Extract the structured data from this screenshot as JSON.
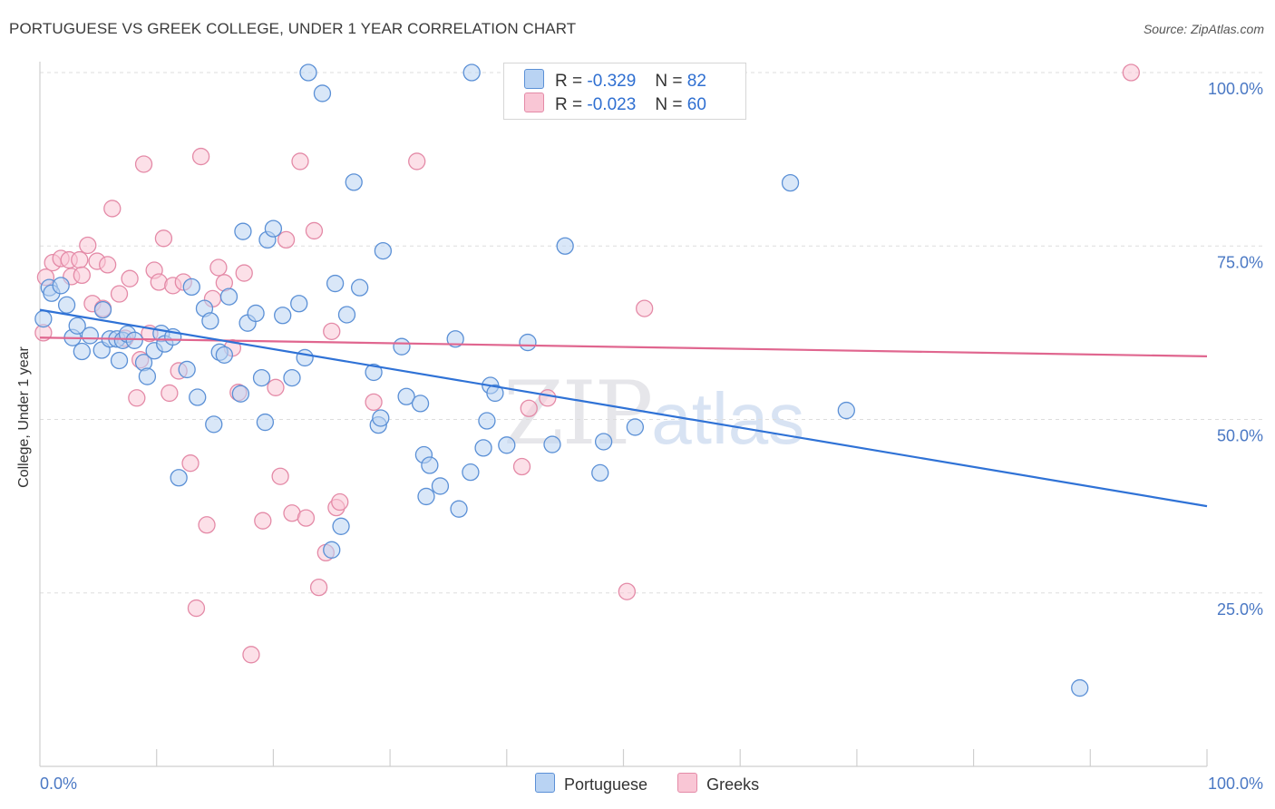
{
  "header": {
    "title": "PORTUGUESE VS GREEK COLLEGE, UNDER 1 YEAR CORRELATION CHART",
    "source": "Source: ZipAtlas.com"
  },
  "watermark": {
    "zip": "ZIP",
    "atlas": "atlas"
  },
  "legend": {
    "rows": [
      {
        "r_label": "R =",
        "r_value": "-0.329",
        "n_label": "N =",
        "n_value": "82"
      },
      {
        "r_label": "R =",
        "r_value": "-0.023",
        "n_label": "N =",
        "n_value": "60"
      }
    ]
  },
  "bottom_legend": {
    "items": [
      "Portuguese",
      "Greeks"
    ]
  },
  "colors": {
    "portuguese_fill": "#b9d3f3",
    "portuguese_stroke": "#5b90d6",
    "portuguese_line": "#2f72d6",
    "greeks_fill": "#f9c6d5",
    "greeks_stroke": "#e48aa7",
    "greeks_line": "#e0668f",
    "tick_label": "#4a78c4",
    "grid": "#dddddd"
  },
  "chart_data": {
    "type": "scatter",
    "title": "PORTUGUESE VS GREEK COLLEGE, UNDER 1 YEAR CORRELATION CHART",
    "xlabel": "",
    "ylabel": "College, Under 1 year",
    "xlim": [
      0,
      100
    ],
    "ylim": [
      0,
      105
    ],
    "x_tick_labels": [
      "0.0%",
      "100.0%"
    ],
    "y_ticks": [
      25,
      50,
      75,
      100
    ],
    "y_tick_labels": [
      "25.0%",
      "50.0%",
      "75.0%",
      "100.0%"
    ],
    "grid": "horizontal dashed",
    "legend_position": "top-center",
    "series": [
      {
        "name": "Portuguese",
        "r": -0.329,
        "n": 82,
        "trend": {
          "x": [
            0,
            100
          ],
          "y": [
            65.8,
            37.5
          ]
        },
        "points": [
          [
            0.8,
            69
          ],
          [
            1,
            68.2
          ],
          [
            1.8,
            69.3
          ],
          [
            2.3,
            66.5
          ],
          [
            2.8,
            61.8
          ],
          [
            3.2,
            63.5
          ],
          [
            3.6,
            59.8
          ],
          [
            4.3,
            62.1
          ],
          [
            5.3,
            60
          ],
          [
            5.4,
            65.8
          ],
          [
            6,
            61.6
          ],
          [
            6.6,
            61.6
          ],
          [
            6.8,
            58.5
          ],
          [
            7.1,
            61.4
          ],
          [
            7.5,
            62.3
          ],
          [
            8.1,
            61.4
          ],
          [
            8.9,
            58.2
          ],
          [
            9.2,
            56.2
          ],
          [
            9.8,
            59.9
          ],
          [
            10.4,
            62.4
          ],
          [
            10.7,
            60.9
          ],
          [
            11.4,
            61.9
          ],
          [
            11.9,
            41.6
          ],
          [
            12.6,
            57.2
          ],
          [
            13,
            69.1
          ],
          [
            13.5,
            53.2
          ],
          [
            14.1,
            66
          ],
          [
            14.6,
            64.2
          ],
          [
            14.9,
            49.3
          ],
          [
            15.4,
            59.7
          ],
          [
            15.8,
            59.3
          ],
          [
            16.2,
            67.7
          ],
          [
            17.2,
            53.7
          ],
          [
            17.4,
            77.1
          ],
          [
            17.8,
            63.9
          ],
          [
            18.5,
            65.3
          ],
          [
            19,
            56
          ],
          [
            19.3,
            49.6
          ],
          [
            19.5,
            75.9
          ],
          [
            20,
            77.5
          ],
          [
            20.8,
            65
          ],
          [
            21.6,
            56
          ],
          [
            22.2,
            66.7
          ],
          [
            22.7,
            58.9
          ],
          [
            23,
            100
          ],
          [
            24.2,
            97
          ],
          [
            25,
            31.2
          ],
          [
            25.3,
            69.6
          ],
          [
            25.8,
            34.6
          ],
          [
            26.3,
            65.1
          ],
          [
            26.9,
            84.2
          ],
          [
            27.4,
            69
          ],
          [
            29.4,
            74.3
          ],
          [
            28.6,
            56.8
          ],
          [
            29,
            49.2
          ],
          [
            29.2,
            50.2
          ],
          [
            31,
            60.5
          ],
          [
            31.4,
            53.3
          ],
          [
            32.6,
            52.3
          ],
          [
            32.9,
            44.9
          ],
          [
            33.4,
            43.4
          ],
          [
            33.1,
            38.9
          ],
          [
            34.3,
            40.4
          ],
          [
            35.6,
            61.6
          ],
          [
            35.9,
            37.1
          ],
          [
            36.9,
            42.4
          ],
          [
            37,
            100
          ],
          [
            38,
            45.9
          ],
          [
            38.3,
            49.8
          ],
          [
            38.6,
            54.9
          ],
          [
            39,
            53.8
          ],
          [
            40,
            46.3
          ],
          [
            41.8,
            61.1
          ],
          [
            43.9,
            46.4
          ],
          [
            45,
            75
          ],
          [
            48,
            42.3
          ],
          [
            48.3,
            46.8
          ],
          [
            51,
            48.9
          ],
          [
            64.3,
            84.1
          ],
          [
            69.1,
            51.3
          ],
          [
            89.1,
            11.3
          ],
          [
            0.3,
            64.5
          ]
        ]
      },
      {
        "name": "Greeks",
        "r": -0.023,
        "n": 60,
        "trend": {
          "x": [
            0,
            100
          ],
          "y": [
            61.8,
            59.1
          ]
        },
        "points": [
          [
            0.5,
            70.5
          ],
          [
            0.3,
            62.5
          ],
          [
            1.1,
            72.6
          ],
          [
            1.8,
            73.2
          ],
          [
            2.5,
            73
          ],
          [
            2.7,
            70.6
          ],
          [
            3.4,
            73
          ],
          [
            3.6,
            70.8
          ],
          [
            4.1,
            75.1
          ],
          [
            4.5,
            66.7
          ],
          [
            4.9,
            72.8
          ],
          [
            5.4,
            66
          ],
          [
            5.8,
            72.3
          ],
          [
            6.2,
            80.4
          ],
          [
            6.8,
            68.1
          ],
          [
            7.3,
            61.7
          ],
          [
            7.7,
            70.3
          ],
          [
            8.3,
            53.1
          ],
          [
            8.6,
            58.6
          ],
          [
            8.9,
            86.8
          ],
          [
            9.4,
            62.4
          ],
          [
            9.8,
            71.5
          ],
          [
            10.2,
            69.8
          ],
          [
            10.6,
            76.1
          ],
          [
            11.1,
            53.8
          ],
          [
            11.4,
            69.3
          ],
          [
            11.9,
            57
          ],
          [
            12.3,
            69.8
          ],
          [
            12.9,
            43.7
          ],
          [
            13.4,
            22.8
          ],
          [
            13.8,
            87.9
          ],
          [
            14.3,
            34.8
          ],
          [
            14.8,
            67.4
          ],
          [
            15.3,
            71.9
          ],
          [
            15.8,
            69.7
          ],
          [
            16.5,
            60.3
          ],
          [
            17,
            53.9
          ],
          [
            17.5,
            71.1
          ],
          [
            18.1,
            16.1
          ],
          [
            19.1,
            35.4
          ],
          [
            20.2,
            54.6
          ],
          [
            20.6,
            41.8
          ],
          [
            21.1,
            75.9
          ],
          [
            21.6,
            36.5
          ],
          [
            22.3,
            87.2
          ],
          [
            22.8,
            35.8
          ],
          [
            23.5,
            77.2
          ],
          [
            23.9,
            25.8
          ],
          [
            24.5,
            30.8
          ],
          [
            25,
            62.7
          ],
          [
            25.4,
            37.3
          ],
          [
            25.7,
            38.1
          ],
          [
            28.6,
            52.5
          ],
          [
            32.3,
            87.2
          ],
          [
            41.3,
            43.2
          ],
          [
            41.9,
            51.6
          ],
          [
            43.5,
            53.1
          ],
          [
            50.3,
            25.2
          ],
          [
            51.8,
            66
          ],
          [
            93.5,
            100
          ]
        ]
      }
    ]
  }
}
